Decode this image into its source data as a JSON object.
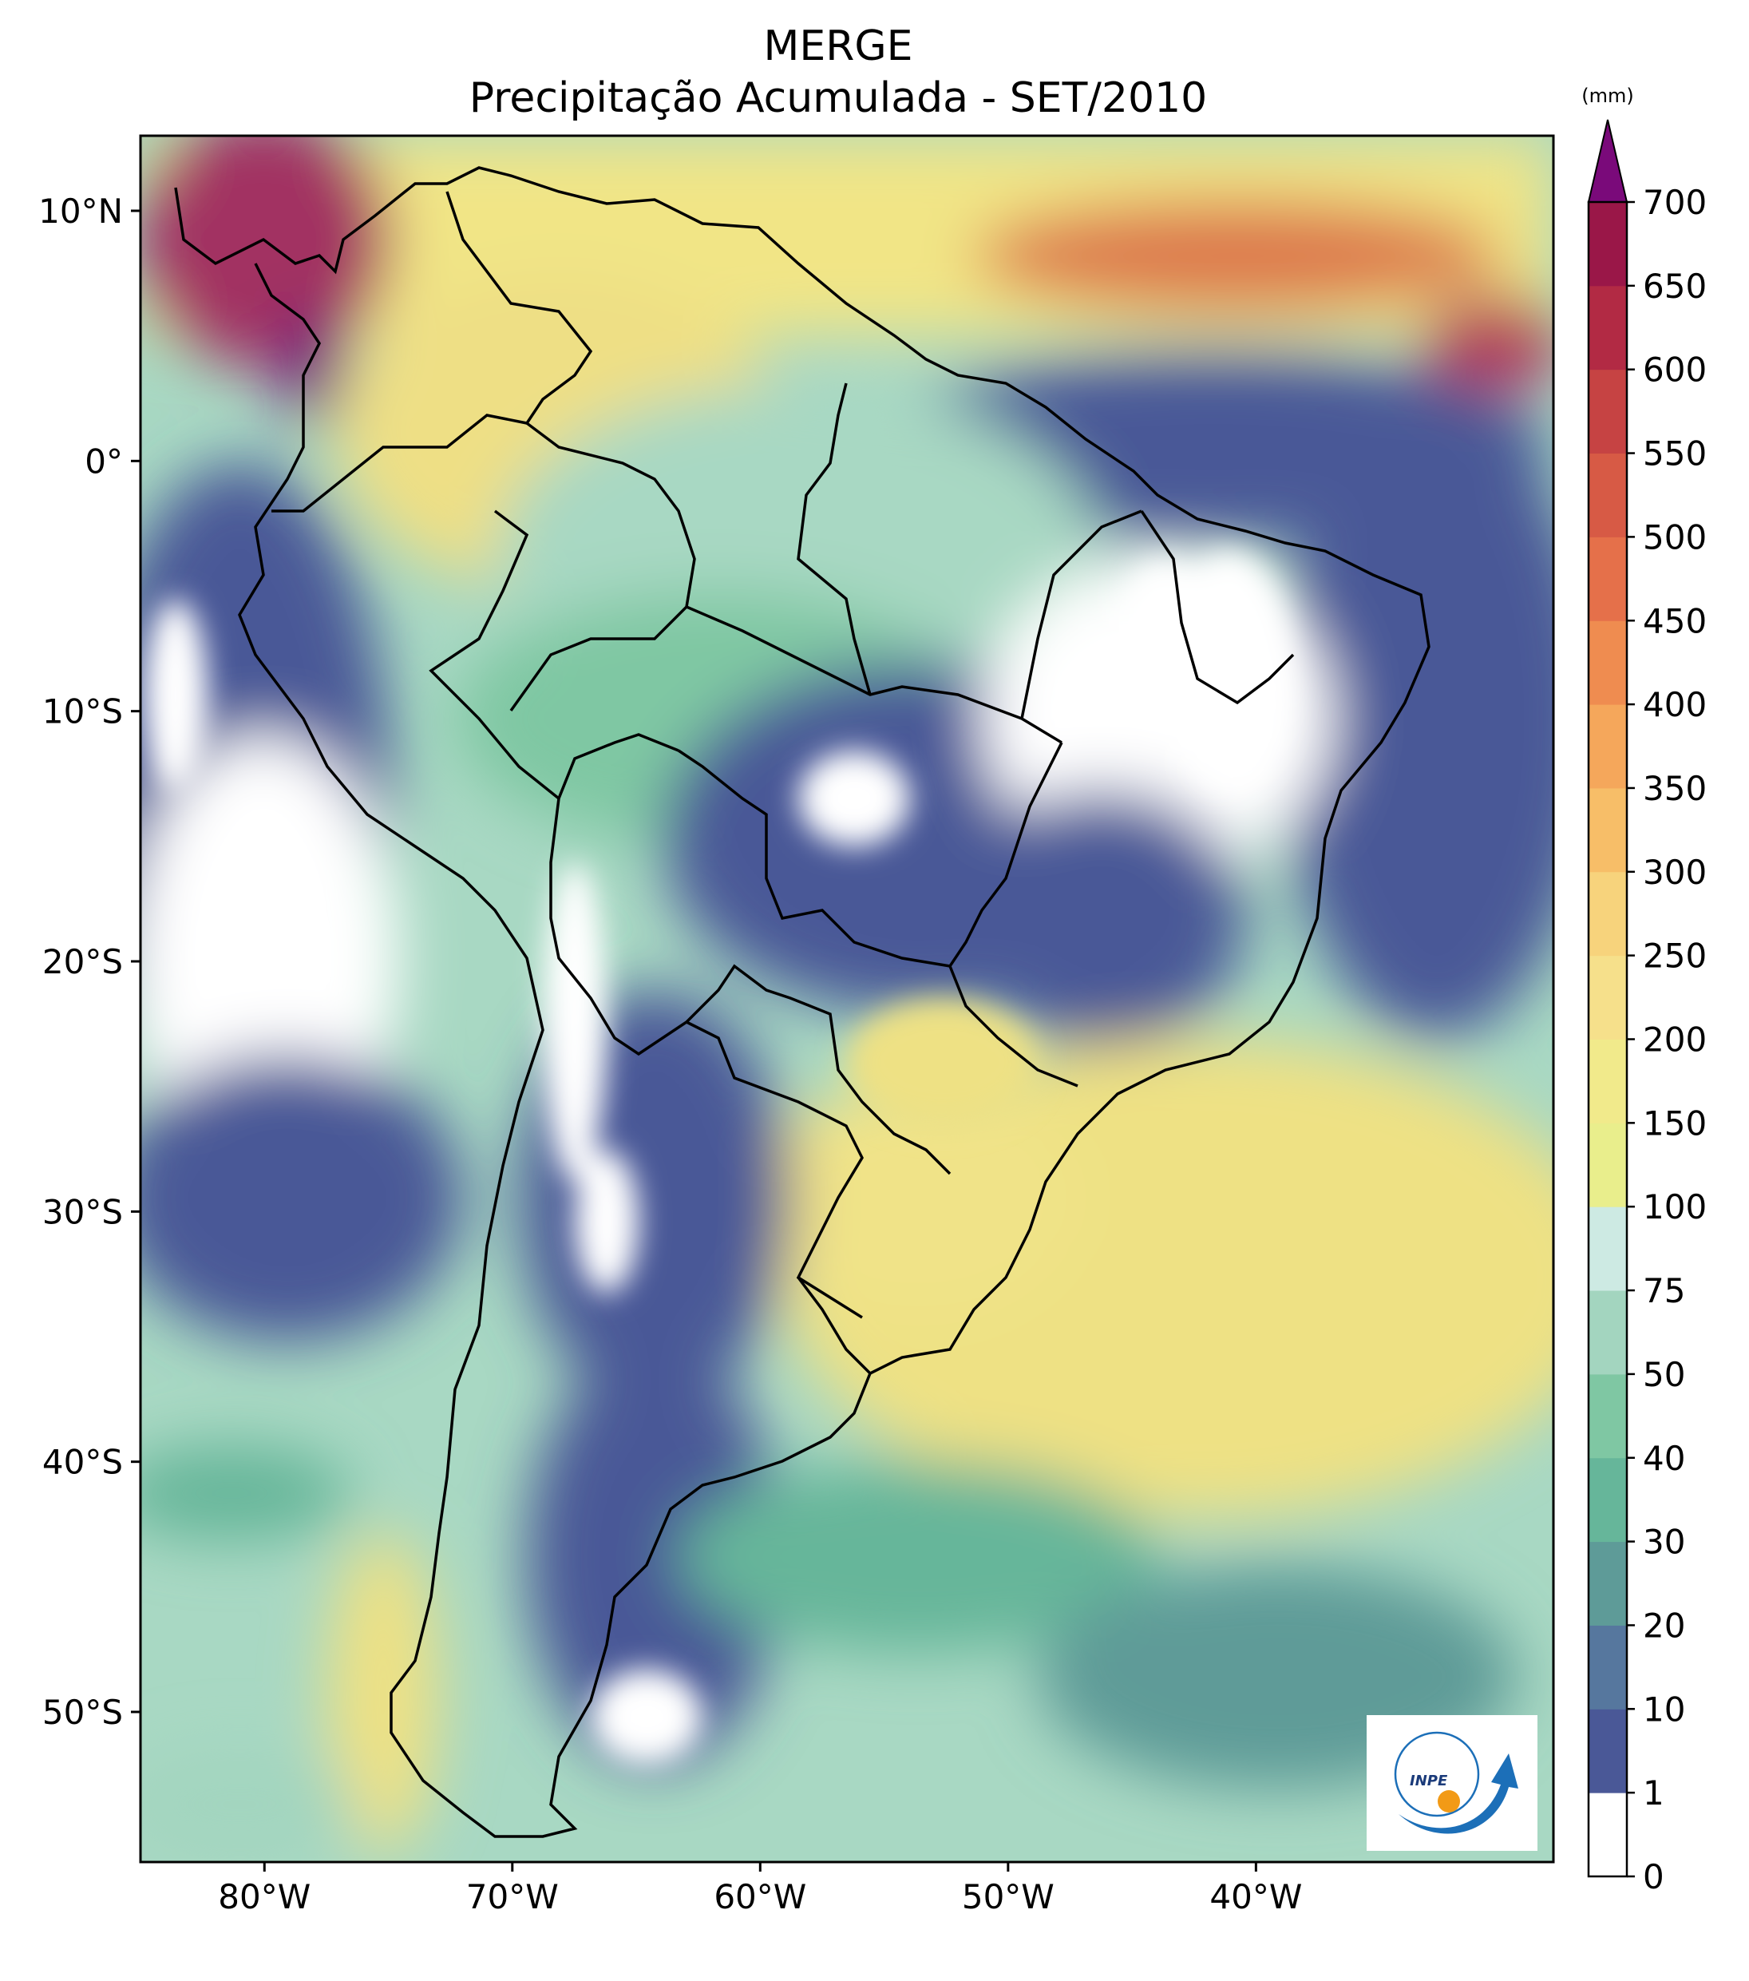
{
  "title": {
    "line1": "MERGE",
    "line2": "Precipitação Acumulada - SET/2010"
  },
  "map": {
    "region": "South America",
    "lon_range": [
      -85,
      -28
    ],
    "lat_range": [
      -56,
      13
    ],
    "lon_ticks": [
      {
        "value": -80,
        "label": "80°W"
      },
      {
        "value": -70,
        "label": "70°W"
      },
      {
        "value": -60,
        "label": "60°W"
      },
      {
        "value": -50,
        "label": "50°W"
      },
      {
        "value": -40,
        "label": "40°W"
      }
    ],
    "lat_ticks": [
      {
        "value": 10,
        "label": "10°N"
      },
      {
        "value": 0,
        "label": "0°"
      },
      {
        "value": -10,
        "label": "10°S"
      },
      {
        "value": -20,
        "label": "20°S"
      },
      {
        "value": -30,
        "label": "30°S"
      },
      {
        "value": -40,
        "label": "40°S"
      },
      {
        "value": -50,
        "label": "50°S"
      }
    ]
  },
  "colorbar": {
    "unit": "(mm)",
    "levels": [
      "0",
      "1",
      "10",
      "20",
      "30",
      "40",
      "50",
      "75",
      "100",
      "150",
      "200",
      "250",
      "300",
      "350",
      "400",
      "450",
      "500",
      "550",
      "600",
      "650",
      "700"
    ],
    "colors": [
      "#ffffff",
      "#4a5897",
      "#56779e",
      "#5e9b98",
      "#66b69a",
      "#7fc7a3",
      "#a3d5bf",
      "#cdeae3",
      "#e9ee8c",
      "#f1ea8b",
      "#f6e08b",
      "#f7d37c",
      "#f7be68",
      "#f5a75b",
      "#ef8c50",
      "#e5704a",
      "#d75a45",
      "#c64343",
      "#b22a44",
      "#9a1748"
    ],
    "extend_color": "#7a0a7a"
  },
  "logo": {
    "text": "INPE",
    "arrow_color": "#1c6fb8",
    "dot_color": "#f29a16"
  }
}
